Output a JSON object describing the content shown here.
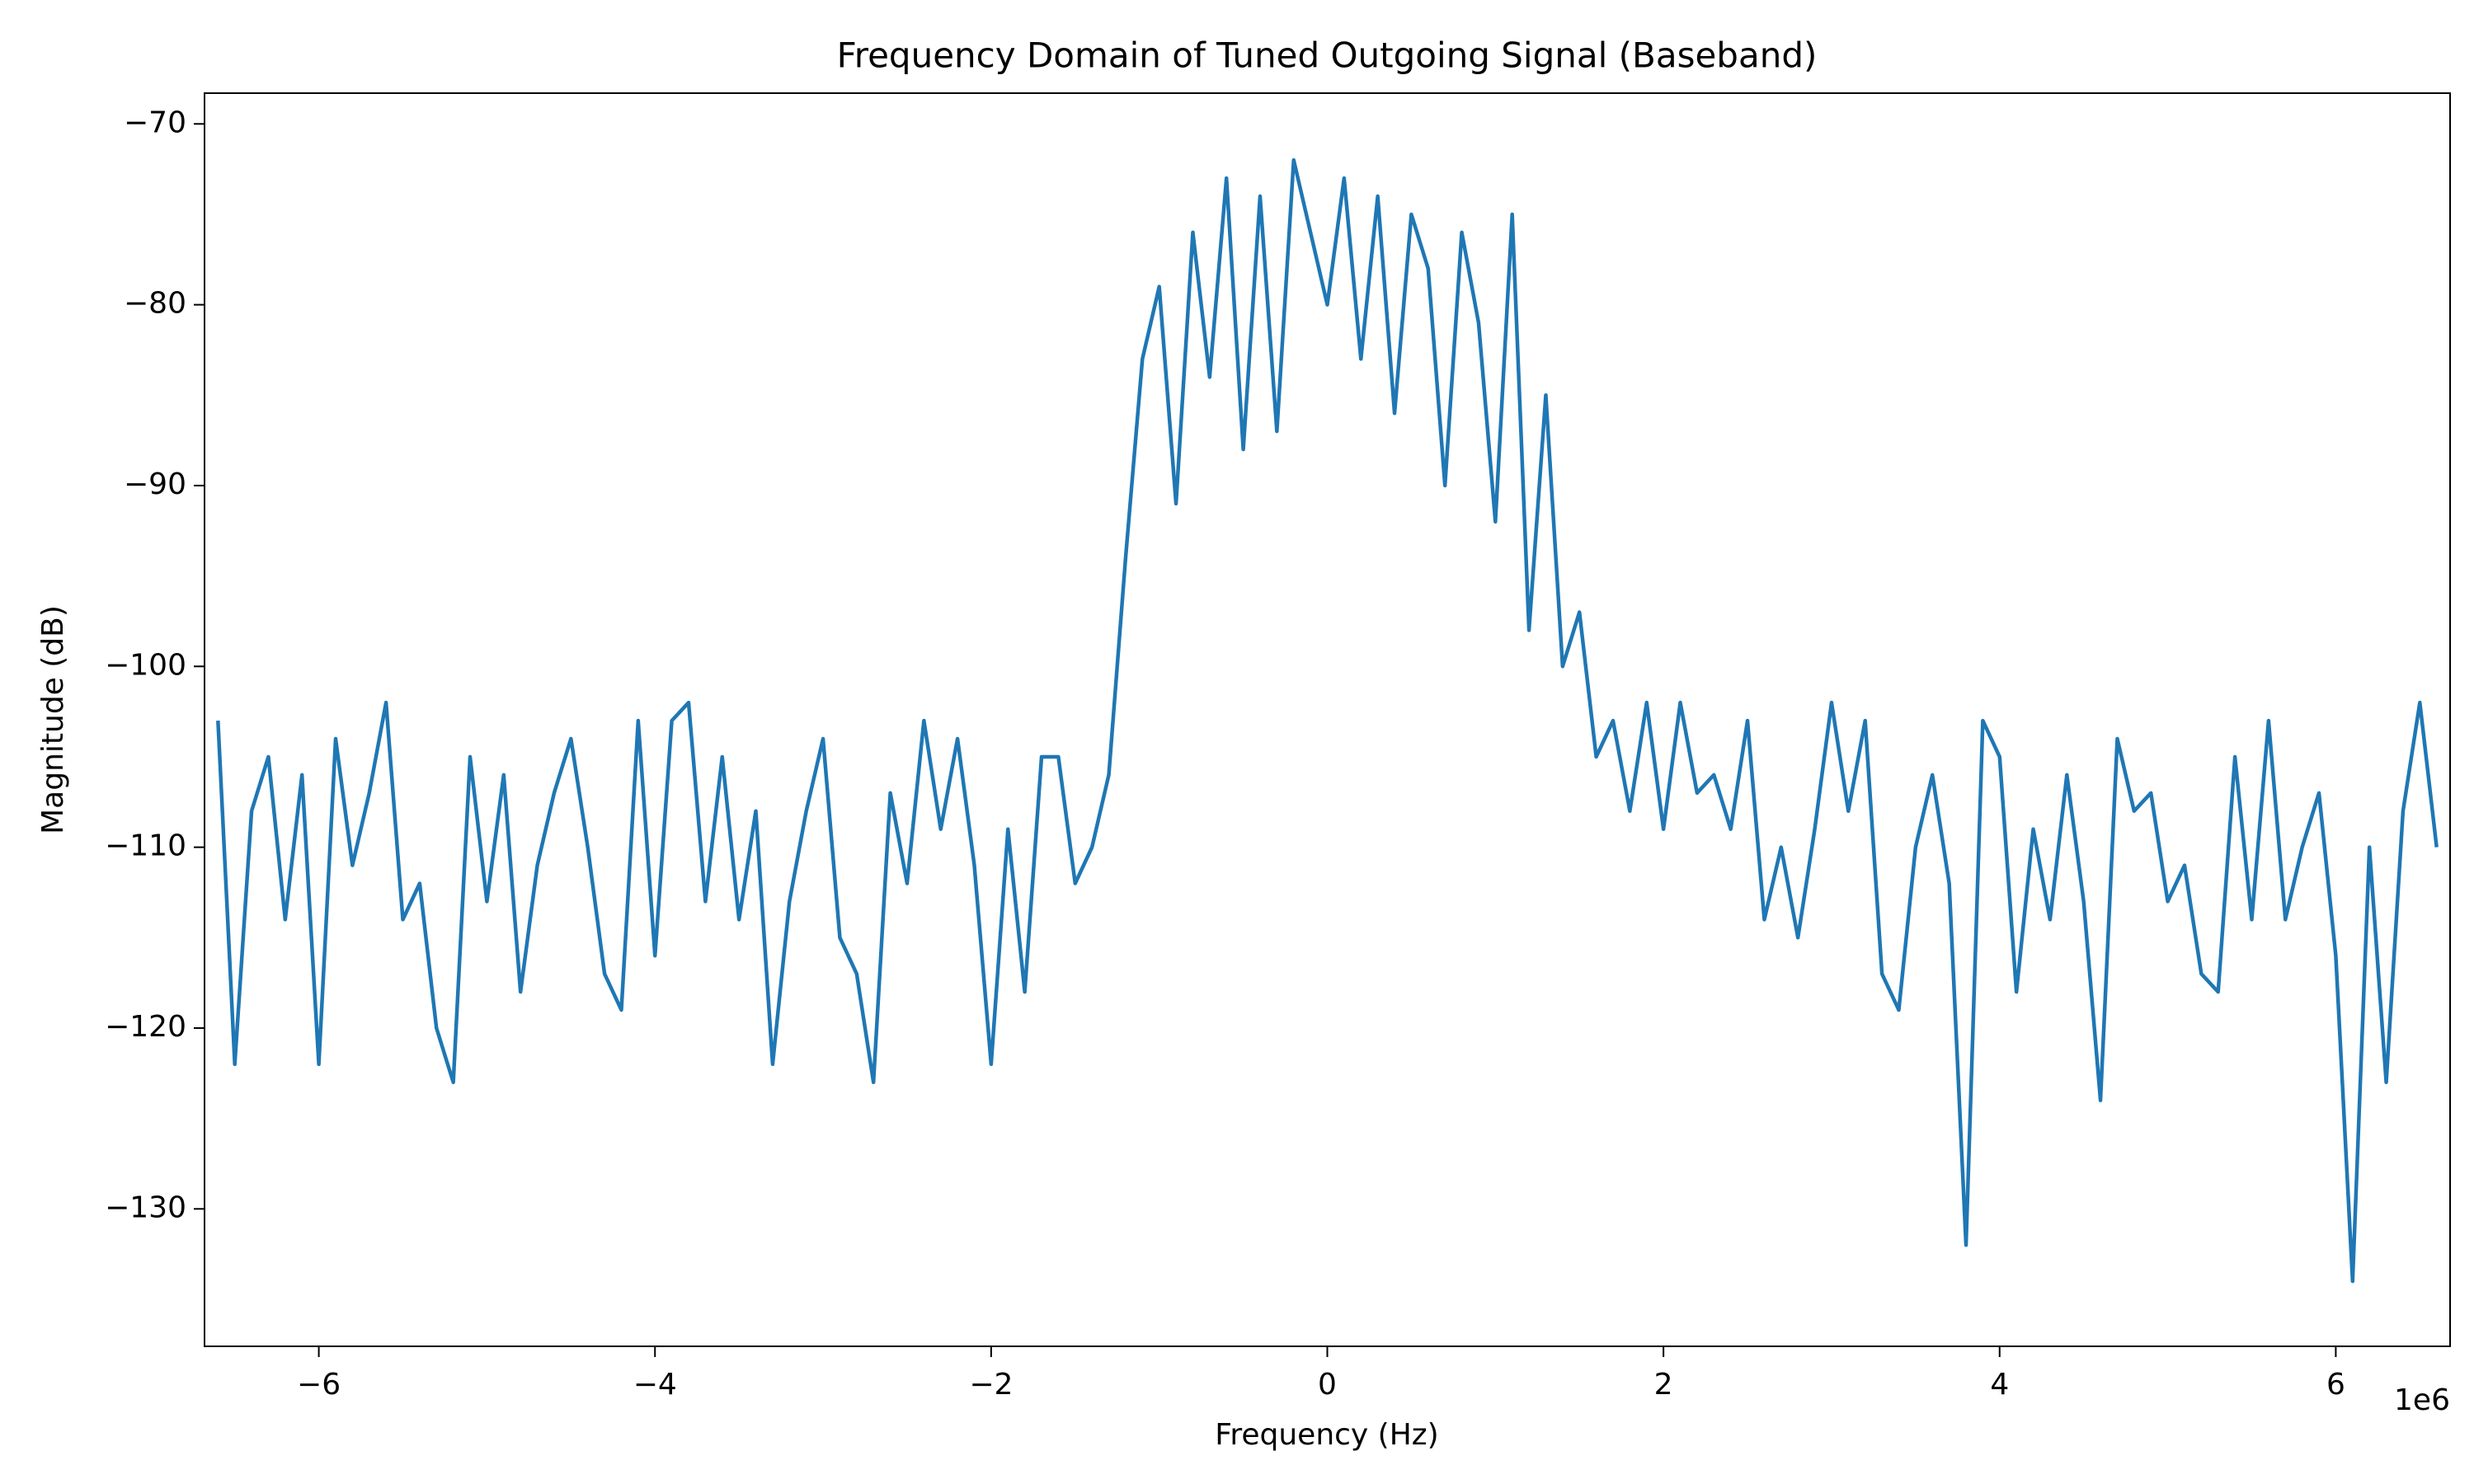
{
  "chart_data": {
    "type": "line",
    "title": "Frequency Domain of Tuned Outgoing Signal (Baseband)",
    "xlabel": "Frequency (Hz)",
    "ylabel": "Magnitude (dB)",
    "x_offset_label": "1e6",
    "color": "#1f77b4",
    "x": [
      -6.6,
      -6.5,
      -6.4,
      -6.3,
      -6.2,
      -6.1,
      -6.0,
      -5.9,
      -5.8,
      -5.7,
      -5.6,
      -5.5,
      -5.4,
      -5.3,
      -5.2,
      -5.1,
      -5.0,
      -4.9,
      -4.8,
      -4.7,
      -4.6,
      -4.5,
      -4.4,
      -4.3,
      -4.2,
      -4.1,
      -4.0,
      -3.9,
      -3.8,
      -3.7,
      -3.6,
      -3.5,
      -3.4,
      -3.3,
      -3.2,
      -3.1,
      -3.0,
      -2.9,
      -2.8,
      -2.7,
      -2.6,
      -2.5,
      -2.4,
      -2.3,
      -2.2,
      -2.1,
      -2.0,
      -1.9,
      -1.8,
      -1.7,
      -1.6,
      -1.5,
      -1.4,
      -1.3,
      -1.2,
      -1.1,
      -1.0,
      -0.9,
      -0.8,
      -0.7,
      -0.6,
      -0.5,
      -0.4,
      -0.3,
      -0.2,
      -0.1,
      0.0,
      0.1,
      0.2,
      0.3,
      0.4,
      0.5,
      0.6,
      0.7,
      0.8,
      0.9,
      1.0,
      1.1,
      1.2,
      1.3,
      1.4,
      1.5,
      1.6,
      1.7,
      1.8,
      1.9,
      2.0,
      2.1,
      2.2,
      2.3,
      2.4,
      2.5,
      2.6,
      2.7,
      2.8,
      2.9,
      3.0,
      3.1,
      3.2,
      3.3,
      3.4,
      3.5,
      3.6,
      3.7,
      3.8,
      3.9,
      4.0,
      4.1,
      4.2,
      4.3,
      4.4,
      4.5,
      4.6,
      4.7,
      4.8,
      4.9,
      5.0,
      5.1,
      5.2,
      5.3,
      5.4,
      5.5,
      5.6,
      5.7,
      5.8,
      5.9,
      6.0,
      6.1,
      6.2,
      6.3,
      6.4,
      6.5,
      6.6
    ],
    "values": [
      -103,
      -122,
      -108,
      -105,
      -114,
      -106,
      -122,
      -104,
      -111,
      -107,
      -102,
      -114,
      -112,
      -120,
      -123,
      -105,
      -113,
      -106,
      -118,
      -111,
      -107,
      -104,
      -110,
      -117,
      -119,
      -103,
      -116,
      -103,
      -102,
      -113,
      -105,
      -114,
      -108,
      -122,
      -113,
      -108,
      -104,
      -115,
      -117,
      -123,
      -107,
      -112,
      -103,
      -109,
      -104,
      -111,
      -122,
      -109,
      -118,
      -105,
      -105,
      -112,
      -110,
      -106,
      -94,
      -83,
      -79,
      -91,
      -76,
      -84,
      -73,
      -88,
      -74,
      -87,
      -72,
      -76,
      -80,
      -73,
      -83,
      -74,
      -86,
      -75,
      -78,
      -90,
      -76,
      -81,
      -92,
      -75,
      -98,
      -85,
      -100,
      -97,
      -105,
      -103,
      -108,
      -102,
      -109,
      -102,
      -107,
      -106,
      -109,
      -103,
      -114,
      -110,
      -115,
      -109,
      -102,
      -108,
      -103,
      -117,
      -119,
      -110,
      -106,
      -112,
      -132,
      -103,
      -105,
      -118,
      -109,
      -114,
      -106,
      -113,
      -124,
      -104,
      -108,
      -107,
      -113,
      -111,
      -117,
      -118,
      -105,
      -114,
      -103,
      -114,
      -110,
      -107,
      -116,
      -134,
      -110,
      -123,
      -108,
      -102,
      -110
    ],
    "xlim": [
      -6.68,
      6.68
    ],
    "ylim": [
      -137.6,
      -68.3
    ],
    "xticks": [
      {
        "value": -6,
        "label": "−6"
      },
      {
        "value": -4,
        "label": "−4"
      },
      {
        "value": -2,
        "label": "−2"
      },
      0,
      2,
      4,
      6
    ],
    "yticks": [
      {
        "value": -130,
        "label": "−130"
      },
      {
        "value": -120,
        "label": "−120"
      },
      {
        "value": -110,
        "label": "−110"
      },
      {
        "value": -100,
        "label": "−100"
      },
      {
        "value": -90,
        "label": "−90"
      },
      {
        "value": -80,
        "label": "−80"
      },
      {
        "value": -70,
        "label": "−70"
      }
    ],
    "grid": false
  }
}
